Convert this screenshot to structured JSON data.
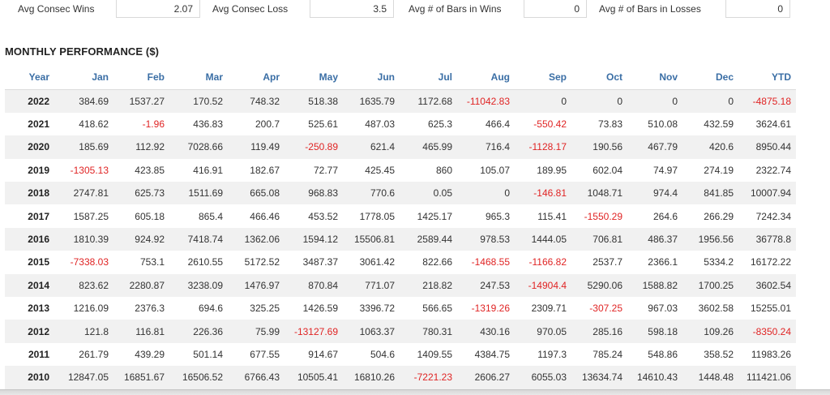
{
  "stats": [
    {
      "label": "Avg Consec Wins",
      "value": "2.07"
    },
    {
      "label": "Avg Consec Loss",
      "value": "3.5"
    },
    {
      "label": "Avg # of Bars in Wins",
      "value": "0"
    },
    {
      "label": "Avg # of Bars in Losses",
      "value": "0"
    }
  ],
  "section_title": "MONTHLY PERFORMANCE ($)",
  "colors": {
    "header_text": "#3a6ea5",
    "negative": "#e02424",
    "row_alt": "#f1f1f1"
  },
  "table": {
    "headers": [
      "Year",
      "Jan",
      "Feb",
      "Mar",
      "Apr",
      "May",
      "Jun",
      "Jul",
      "Aug",
      "Sep",
      "Oct",
      "Nov",
      "Dec",
      "YTD"
    ],
    "rows": [
      [
        "2022",
        "384.69",
        "1537.27",
        "170.52",
        "748.32",
        "518.38",
        "1635.79",
        "1172.68",
        "-11042.83",
        "0",
        "0",
        "0",
        "0",
        "-4875.18"
      ],
      [
        "2021",
        "418.62",
        "-1.96",
        "436.83",
        "200.7",
        "525.61",
        "487.03",
        "625.3",
        "466.4",
        "-550.42",
        "73.83",
        "510.08",
        "432.59",
        "3624.61"
      ],
      [
        "2020",
        "185.69",
        "112.92",
        "7028.66",
        "119.49",
        "-250.89",
        "621.4",
        "465.99",
        "716.4",
        "-1128.17",
        "190.56",
        "467.79",
        "420.6",
        "8950.44"
      ],
      [
        "2019",
        "-1305.13",
        "423.85",
        "416.91",
        "182.67",
        "72.77",
        "425.45",
        "860",
        "105.07",
        "189.95",
        "602.04",
        "74.97",
        "274.19",
        "2322.74"
      ],
      [
        "2018",
        "2747.81",
        "625.73",
        "1511.69",
        "665.08",
        "968.83",
        "770.6",
        "0.05",
        "0",
        "-146.81",
        "1048.71",
        "974.4",
        "841.85",
        "10007.94"
      ],
      [
        "2017",
        "1587.25",
        "605.18",
        "865.4",
        "466.46",
        "453.52",
        "1778.05",
        "1425.17",
        "965.3",
        "115.41",
        "-1550.29",
        "264.6",
        "266.29",
        "7242.34"
      ],
      [
        "2016",
        "1810.39",
        "924.92",
        "7418.74",
        "1362.06",
        "1594.12",
        "15506.81",
        "2589.44",
        "978.53",
        "1444.05",
        "706.81",
        "486.37",
        "1956.56",
        "36778.8"
      ],
      [
        "2015",
        "-7338.03",
        "753.1",
        "2610.55",
        "5172.52",
        "3487.37",
        "3061.42",
        "822.66",
        "-1468.55",
        "-1166.82",
        "2537.7",
        "2366.1",
        "5334.2",
        "16172.22"
      ],
      [
        "2014",
        "823.62",
        "2280.87",
        "3238.09",
        "1476.97",
        "870.84",
        "771.07",
        "218.82",
        "247.53",
        "-14904.4",
        "5290.06",
        "1588.82",
        "1700.25",
        "3602.54"
      ],
      [
        "2013",
        "1216.09",
        "2376.3",
        "694.6",
        "325.25",
        "1426.59",
        "3396.72",
        "566.65",
        "-1319.26",
        "2309.71",
        "-307.25",
        "967.03",
        "3602.58",
        "15255.01"
      ],
      [
        "2012",
        "121.8",
        "116.81",
        "226.36",
        "75.99",
        "-13127.69",
        "1063.37",
        "780.31",
        "430.16",
        "970.05",
        "285.16",
        "598.18",
        "109.26",
        "-8350.24"
      ],
      [
        "2011",
        "261.79",
        "439.29",
        "501.14",
        "677.55",
        "914.67",
        "504.6",
        "1409.55",
        "4384.75",
        "1197.3",
        "785.24",
        "548.86",
        "358.52",
        "11983.26"
      ],
      [
        "2010",
        "12847.05",
        "16851.67",
        "16506.52",
        "6766.43",
        "10505.41",
        "16810.26",
        "-7221.23",
        "2606.27",
        "6055.03",
        "13634.74",
        "14610.43",
        "1448.48",
        "111421.06"
      ]
    ]
  }
}
